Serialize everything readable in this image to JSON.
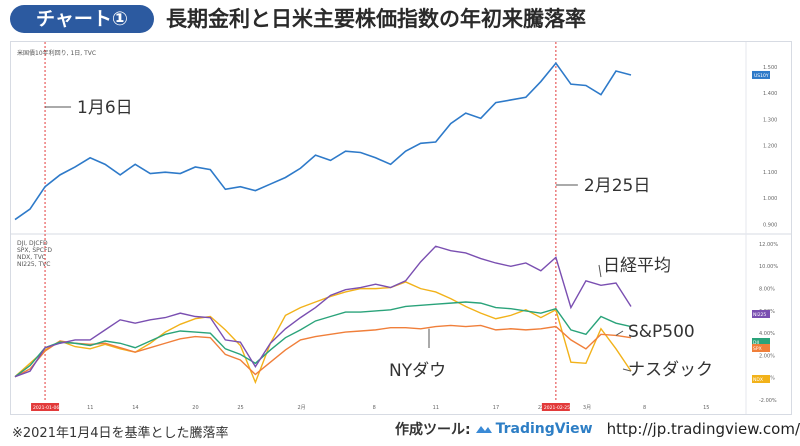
{
  "header": {
    "badge": "チャート①",
    "title": "長期金利と日米主要株価指数の年初来騰落率"
  },
  "colors": {
    "badge": "#2c5aa0",
    "ust10y": "#2e7ac9",
    "dji": "#2aa37a",
    "spx": "#f07f3a",
    "ndx": "#f2b21a",
    "ni225": "#7a4fb1",
    "event_line": "#e23a3a"
  },
  "chart_data": [
    {
      "type": "line",
      "title": "",
      "source_label": "米国債10年利回り, 1日, TVC",
      "y_unit": "%",
      "y_ticks": [
        "1.500",
        "1.400",
        "1.300",
        "1.200",
        "1.100",
        "1.000",
        "0.900"
      ],
      "ylim": [
        0.86,
        1.56
      ],
      "price_tag": "US10Y",
      "series": [
        {
          "key": "ust10y",
          "values": [
            0.915,
            0.955,
            1.04,
            1.085,
            1.115,
            1.15,
            1.125,
            1.085,
            1.125,
            1.09,
            1.095,
            1.09,
            1.115,
            1.105,
            1.03,
            1.04,
            1.025,
            1.05,
            1.075,
            1.11,
            1.16,
            1.14,
            1.175,
            1.17,
            1.15,
            1.125,
            1.175,
            1.205,
            1.21,
            1.28,
            1.32,
            1.3,
            1.36,
            1.37,
            1.38,
            1.44,
            1.51,
            1.43,
            1.425,
            1.39,
            1.48,
            1.465
          ]
        }
      ],
      "annotations": [
        {
          "label": "1月6日",
          "x_index": 2
        },
        {
          "label": "2月25日",
          "x_index": 36
        }
      ]
    },
    {
      "type": "line",
      "title": "",
      "legend": [
        "DJI, DJCFD",
        "SPX, SPCFD",
        "NDX, TVC",
        "NI225, TVC"
      ],
      "y_unit": "%",
      "y_ticks": [
        "12.00%",
        "10.00%",
        "8.00%",
        "6.00%",
        "4.00%",
        "2.00%",
        "0.00%",
        "-2.00%"
      ],
      "ylim": [
        -2.0,
        12.8
      ],
      "price_tags": [
        "NI225",
        "DJI",
        "SPX",
        "NDX"
      ],
      "x_tick_labels": [
        "2021-01-06",
        "11",
        "14",
        "20",
        "25",
        "2月",
        "8",
        "11",
        "17",
        "22",
        "2021-02-25",
        "3月",
        "8",
        "15"
      ],
      "series": [
        {
          "name": "NI225",
          "key": "ni225",
          "label": "日経平均",
          "values": [
            0.0,
            0.5,
            2.6,
            3.0,
            3.3,
            3.3,
            4.2,
            5.1,
            4.8,
            5.1,
            5.3,
            5.7,
            5.4,
            5.3,
            3.3,
            3.1,
            0.9,
            3.0,
            4.3,
            5.3,
            6.2,
            7.3,
            7.8,
            8.0,
            8.3,
            8.0,
            8.6,
            10.3,
            11.7,
            11.3,
            11.1,
            10.6,
            10.2,
            9.9,
            10.2,
            9.5,
            10.7,
            6.2,
            8.6,
            8.2,
            8.4,
            6.3
          ]
        },
        {
          "name": "DJI",
          "key": "dji",
          "label": "NYダウ",
          "values": [
            0.0,
            1.0,
            2.6,
            3.1,
            3.0,
            2.8,
            3.2,
            3.0,
            2.6,
            3.2,
            3.8,
            4.1,
            4.0,
            3.9,
            2.5,
            2.0,
            1.2,
            2.4,
            3.5,
            4.2,
            5.0,
            5.4,
            5.8,
            5.8,
            5.9,
            6.0,
            6.3,
            6.4,
            6.5,
            6.6,
            6.7,
            6.6,
            6.2,
            6.1,
            5.9,
            5.7,
            6.1,
            4.2,
            3.8,
            5.4,
            4.8,
            4.5
          ]
        },
        {
          "name": "SPX",
          "key": "spx",
          "label": "S&P500",
          "values": [
            0.0,
            0.7,
            2.3,
            3.2,
            3.0,
            2.9,
            3.0,
            2.6,
            2.2,
            2.6,
            3.0,
            3.4,
            3.6,
            3.5,
            2.0,
            1.5,
            0.2,
            1.3,
            2.4,
            3.3,
            3.6,
            3.8,
            4.0,
            4.1,
            4.2,
            4.4,
            4.4,
            4.3,
            4.5,
            4.6,
            4.5,
            4.6,
            4.2,
            4.3,
            4.2,
            4.3,
            4.5,
            3.3,
            2.5,
            3.8,
            3.7,
            3.5
          ]
        },
        {
          "name": "NDX",
          "key": "ndx",
          "label": "ナスダック",
          "values": [
            0.0,
            1.2,
            2.4,
            3.2,
            2.7,
            2.5,
            2.9,
            2.5,
            2.2,
            3.0,
            4.0,
            4.7,
            5.2,
            5.4,
            4.2,
            2.8,
            -0.5,
            3.0,
            5.5,
            6.2,
            6.7,
            7.2,
            7.6,
            7.9,
            7.9,
            8.0,
            8.5,
            7.9,
            7.6,
            7.0,
            6.3,
            5.7,
            5.2,
            5.5,
            6.0,
            5.3,
            6.0,
            1.3,
            1.2,
            4.3,
            2.5,
            0.5
          ]
        }
      ]
    }
  ],
  "footer": {
    "note": "※2021年1月4日を基準とした騰落率",
    "tool_label": "作成ツール:",
    "brand": "TradingView",
    "url": "http://jp.tradingview.com/"
  }
}
